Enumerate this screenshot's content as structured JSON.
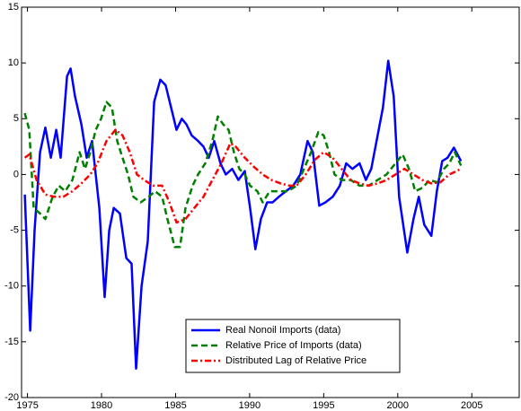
{
  "chart_data": {
    "type": "line",
    "xlim": [
      1974.6,
      2008.2
    ],
    "xticks": [
      1975,
      1980,
      1985,
      1990,
      1995,
      2000,
      2005
    ],
    "ylim": [
      -20,
      15
    ],
    "yticks": [
      -20,
      -15,
      -10,
      -5,
      0,
      5,
      10,
      15
    ],
    "legend": "lower center",
    "series": [
      {
        "name": "Real Nonoil Imports (data)",
        "color": "#0000ff",
        "style": "solid",
        "x": [
          1974.82,
          1975.18,
          1975.48,
          1975.85,
          1976.21,
          1976.58,
          1976.94,
          1977.24,
          1977.67,
          1977.91,
          1978.21,
          1978.64,
          1979.0,
          1979.36,
          1979.85,
          1980.21,
          1980.52,
          1980.82,
          1981.24,
          1981.67,
          1982.03,
          1982.33,
          1982.7,
          1983.12,
          1983.55,
          1983.97,
          1984.33,
          1984.7,
          1985.06,
          1985.42,
          1985.73,
          1986.09,
          1986.52,
          1986.88,
          1987.24,
          1987.61,
          1988.03,
          1988.39,
          1988.82,
          1989.24,
          1989.67,
          1990.03,
          1990.39,
          1990.76,
          1991.18,
          1991.55,
          1991.97,
          1992.45,
          1992.94,
          1993.42,
          1993.91,
          1994.27,
          1994.7,
          1995.12,
          1995.61,
          1996.09,
          1996.52,
          1996.94,
          1997.42,
          1997.85,
          1998.21,
          1998.64,
          1999.0,
          1999.36,
          1999.73,
          2000.09,
          2000.64,
          2001.06,
          2001.42,
          2001.79,
          2002.27,
          2002.64,
          2003.0,
          2003.36,
          2003.79,
          2004.27
        ],
        "values": [
          -1.8,
          -14,
          -5,
          2,
          4.2,
          1.5,
          4,
          1.5,
          8.8,
          9.5,
          7,
          4.5,
          1.5,
          3,
          -3,
          -11,
          -5,
          -3,
          -3.5,
          -7.5,
          -8,
          -17.4,
          -10,
          -6,
          6.5,
          8.5,
          8,
          6,
          4,
          5,
          4.5,
          3.5,
          3,
          2.5,
          1.5,
          3,
          1,
          0,
          0.5,
          -0.5,
          0.3,
          -3,
          -6.7,
          -4,
          -2.5,
          -2.5,
          -2,
          -1.5,
          -1,
          0,
          3,
          2,
          -2.8,
          -2.5,
          -2,
          -1,
          1,
          0.5,
          1,
          -0.5,
          0.5,
          3.5,
          6,
          10.2,
          7,
          -2,
          -7,
          -4,
          -2,
          -4.5,
          -5.5,
          -1.5,
          1.2,
          1.5,
          2.4,
          1.2
        ]
      },
      {
        "name": "Relative Price of Imports (data)",
        "color": "#008000",
        "style": "dashed",
        "x": [
          1974.82,
          1975.12,
          1975.42,
          1975.85,
          1976.21,
          1976.7,
          1977.12,
          1977.55,
          1978.03,
          1978.52,
          1978.88,
          1979.24,
          1979.61,
          1979.97,
          1980.33,
          1980.7,
          1981.06,
          1981.42,
          1981.79,
          1982.15,
          1982.64,
          1983.18,
          1983.61,
          1984.09,
          1984.45,
          1984.94,
          1985.3,
          1985.67,
          1986.15,
          1986.52,
          1987.0,
          1987.48,
          1987.85,
          1988.21,
          1988.58,
          1988.94,
          1989.3,
          1989.67,
          1990.03,
          1990.52,
          1990.88,
          1991.36,
          1991.97,
          1992.58,
          1993.18,
          1993.67,
          1994.15,
          1994.64,
          1995.0,
          1995.36,
          1995.73,
          1996.21,
          1996.82,
          1997.42,
          1998.03,
          1998.64,
          1999.24,
          1999.85,
          2000.33,
          2000.76,
          2001.18,
          2001.67,
          2002.15,
          2002.64,
          2003.12,
          2003.48,
          2003.85,
          2004.27
        ],
        "values": [
          5.5,
          4,
          -3,
          -3.5,
          -4,
          -2,
          -1,
          -1.5,
          -0.5,
          2,
          0.5,
          2,
          4,
          5,
          6.5,
          6,
          3,
          1.5,
          0,
          -2,
          -2.5,
          -2,
          -1.5,
          -2,
          -4,
          -6.5,
          -6.5,
          -3,
          -1,
          0,
          1,
          3,
          5.2,
          4.5,
          4,
          2,
          0.5,
          0,
          -1,
          -1.5,
          -2.5,
          -1.5,
          -1.5,
          -1.5,
          -1,
          0.5,
          2,
          3.8,
          3.5,
          2,
          0,
          -0.5,
          -0.5,
          -1,
          -1,
          -0.5,
          0,
          1,
          1.8,
          0.5,
          -1.5,
          -1.2,
          -0.5,
          -0.7,
          0.5,
          1,
          2,
          0.8
        ]
      },
      {
        "name": "Distributed Lag of Relative Price",
        "color": "#ff0000",
        "style": "dashdot",
        "x": [
          1974.82,
          1975.12,
          1975.61,
          1976.21,
          1976.82,
          1977.42,
          1978.03,
          1978.64,
          1979.24,
          1979.73,
          1980.33,
          1980.94,
          1981.42,
          1981.91,
          1982.39,
          1982.88,
          1983.48,
          1984.09,
          1984.58,
          1985.06,
          1985.67,
          1986.27,
          1986.88,
          1987.48,
          1988.09,
          1988.7,
          1989.06,
          1989.67,
          1990.27,
          1990.88,
          1991.48,
          1992.09,
          1992.7,
          1993.18,
          1993.79,
          1994.39,
          1995.0,
          1995.61,
          1996.21,
          1996.82,
          1997.42,
          1998.03,
          1998.64,
          1999.24,
          1999.85,
          2000.45,
          2001.06,
          2001.67,
          2002.27,
          2002.88,
          2003.48,
          2004.27
        ],
        "values": [
          1.5,
          1.8,
          -0.5,
          -1.8,
          -2,
          -2,
          -1.5,
          -0.8,
          0,
          1,
          3,
          4,
          3.5,
          2,
          0,
          -0.5,
          -1,
          -1,
          -2.5,
          -4.3,
          -4,
          -3,
          -2,
          -0.5,
          1,
          2.8,
          2.5,
          1.5,
          0.7,
          0,
          -0.5,
          -0.8,
          -1,
          -1,
          0,
          1.3,
          2,
          1.5,
          0.5,
          -0.5,
          -0.8,
          -1,
          -0.8,
          -0.5,
          0,
          0.5,
          0,
          -0.5,
          -0.8,
          -0.7,
          0,
          0.5
        ]
      }
    ]
  }
}
